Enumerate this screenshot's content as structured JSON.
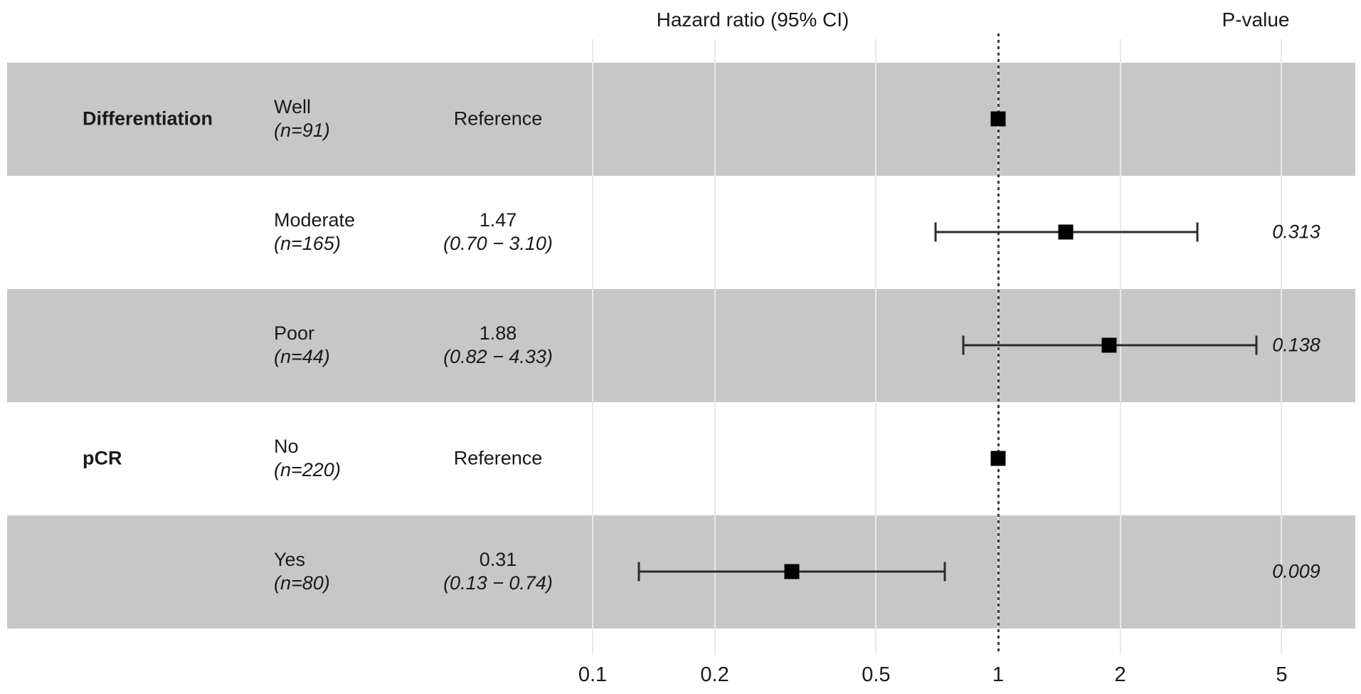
{
  "header": {
    "hazard_title": "Hazard ratio (95% CI)",
    "pvalue_title": "P-value"
  },
  "colors": {
    "band": "#c7c7c7",
    "gridline": "#e8e8e8",
    "reference_dotted_line": "#3d3d3d",
    "ci_line": "#2b2b2b",
    "marker": "#000000",
    "text": "#1a1a1a",
    "background": "#ffffff"
  },
  "chart_data": {
    "type": "forest",
    "title": "Hazard ratio (95% CI)",
    "pvalue_column_title": "P-value",
    "x_scale": "log10",
    "x_ticks": [
      0.1,
      0.2,
      0.5,
      1,
      2,
      5
    ],
    "x_tick_labels": [
      "0.1",
      "0.2",
      "0.5",
      "1",
      "2",
      "5"
    ],
    "xlim": [
      0.085,
      6.5
    ],
    "reference_line": 1,
    "grid": "vertical-light-gray",
    "rows": [
      {
        "group": "Differentiation",
        "level": "Well",
        "n_label": "(n=91)",
        "estimate_label": "Reference",
        "ci_label": "",
        "hr": 1.0,
        "ci_low": null,
        "ci_high": null,
        "p_value": "",
        "shaded": true
      },
      {
        "group": "",
        "level": "Moderate",
        "n_label": "(n=165)",
        "estimate_label": "1.47",
        "ci_label": "(0.70 − 3.10)",
        "hr": 1.47,
        "ci_low": 0.7,
        "ci_high": 3.1,
        "p_value": "0.313",
        "shaded": false
      },
      {
        "group": "",
        "level": "Poor",
        "n_label": "(n=44)",
        "estimate_label": "1.88",
        "ci_label": "(0.82 − 4.33)",
        "hr": 1.88,
        "ci_low": 0.82,
        "ci_high": 4.33,
        "p_value": "0.138",
        "shaded": true
      },
      {
        "group": "pCR",
        "level": "No",
        "n_label": "(n=220)",
        "estimate_label": "Reference",
        "ci_label": "",
        "hr": 1.0,
        "ci_low": null,
        "ci_high": null,
        "p_value": "",
        "shaded": false
      },
      {
        "group": "",
        "level": "Yes",
        "n_label": "(n=80)",
        "estimate_label": "0.31",
        "ci_label": "(0.13 − 0.74)",
        "hr": 0.31,
        "ci_low": 0.13,
        "ci_high": 0.74,
        "p_value": "0.009",
        "shaded": true
      }
    ]
  }
}
